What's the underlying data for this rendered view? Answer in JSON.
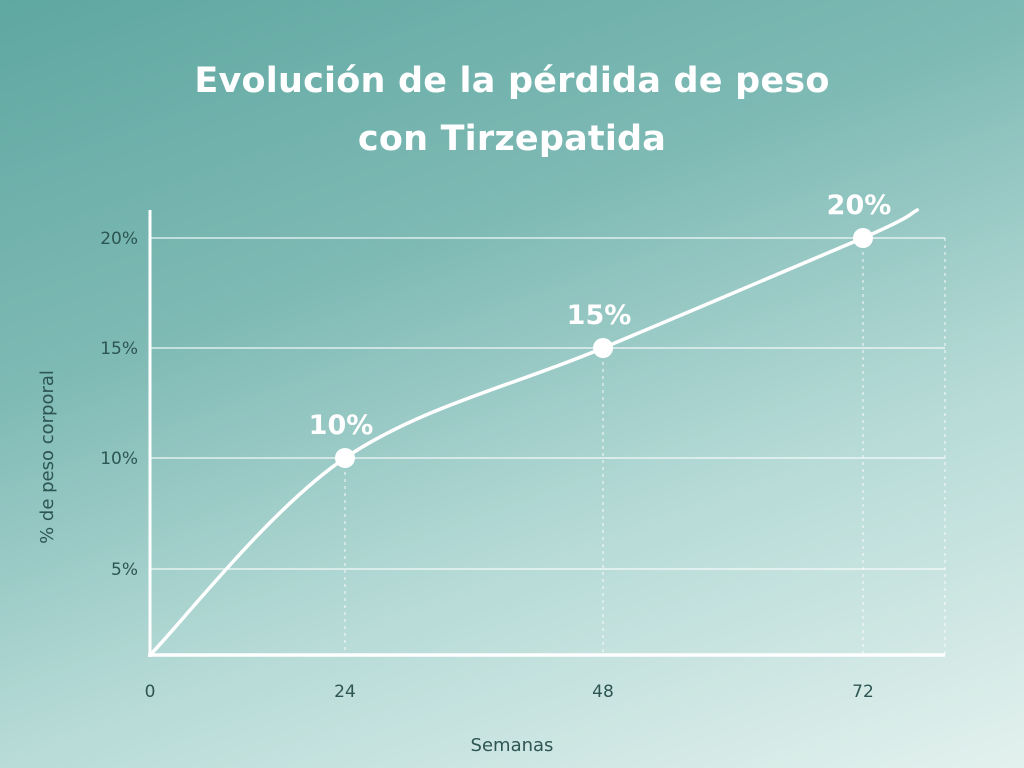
{
  "chart_data": {
    "type": "line",
    "title": "Evolución de la pérdida de peso con Tirzepatida",
    "title_lines": [
      "Evolución de la pérdida de peso",
      "con Tirzepatida"
    ],
    "xlabel": "Semanas",
    "ylabel": "% de peso corporal",
    "x_ticks": [
      "0",
      "24",
      "48",
      "72"
    ],
    "y_ticks": [
      "5%",
      "10%",
      "15%",
      "20%"
    ],
    "xlim": [
      0,
      79
    ],
    "ylim": [
      0,
      21.3
    ],
    "grid": "horizontal lines at y ticks; dotted vertical guides at marked points",
    "series": [
      {
        "points": [
          [
            0,
            0
          ],
          [
            24,
            10
          ],
          [
            48,
            15
          ],
          [
            72,
            20
          ],
          [
            77,
            21.3
          ]
        ],
        "markers": [
          {
            "x": 24,
            "y": 10,
            "label": "10%"
          },
          {
            "x": 48,
            "y": 15,
            "label": "15%"
          },
          {
            "x": 72,
            "y": 20,
            "label": "20%"
          }
        ],
        "color": "#ffffff"
      }
    ],
    "colors": {
      "background_start": "#5fa7a1",
      "background_end": "#e3f1ee",
      "text": "#2d5552",
      "line": "#ffffff"
    }
  }
}
